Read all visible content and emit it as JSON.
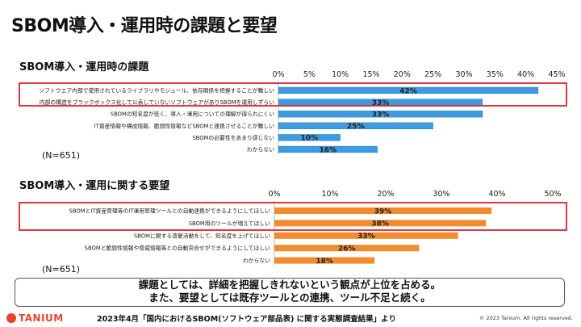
{
  "page": {
    "title": "SBOM導入・運用時の課題と要望",
    "summary_line1": "課題としては、詳細を把握しきれないという観点が上位を占める。",
    "summary_line2": "また、要望としては既存ツールとの連携、ツール不足と続く。",
    "logo": "TANIUM",
    "source": "2023年4月「国内におけるSBOM(ソフトウェア部品表) に関する実態調査結果」より",
    "copyright": "© 2023 Tanium. All rights reserved."
  },
  "chart_data": [
    {
      "type": "bar",
      "orientation": "horizontal",
      "title": "SBOM導入・運用時の課題",
      "n_label": "(N=651)",
      "color": "#3d9be0",
      "highlight_color": "#e0202c",
      "xlim": [
        0,
        45
      ],
      "ticks": [
        "0%",
        "5%",
        "10%",
        "15%",
        "20%",
        "25%",
        "30%",
        "35%",
        "40%",
        "45%"
      ],
      "tick_values": [
        0,
        5,
        10,
        15,
        20,
        25,
        30,
        35,
        40,
        45
      ],
      "categories": [
        "ソフトウエア内部で使用されているライブラリやモジュール、依存関係を把握することが難しい",
        "内部の構造をブラックボックス化して公表していないソフトウェアがありSBOMを運用しずらい",
        "SBOMの知名度が低く、導入・運用についての理解が得られにくい",
        "IT資産情報や構成情報、脆弱性情報などSBOMと連携させることが難しい",
        "SBOMの必要性をあまり感じない",
        "わからない"
      ],
      "values": [
        42,
        33,
        33,
        25,
        10,
        16
      ],
      "labels": [
        "42%",
        "33%",
        "33%",
        "25%",
        "10%",
        "16%"
      ],
      "highlighted": [
        0,
        1
      ]
    },
    {
      "type": "bar",
      "orientation": "horizontal",
      "title": "SBOM導入・運用に関する要望",
      "n_label": "(N=651)",
      "color": "#f28a2e",
      "highlight_color": "#e0202c",
      "xlim": [
        0,
        50
      ],
      "ticks": [
        "0%",
        "10%",
        "20%",
        "30%",
        "40%",
        "50%"
      ],
      "tick_values": [
        0,
        10,
        20,
        30,
        40,
        50
      ],
      "categories": [
        "SBOMとIT資産管理等のIT運用管理ツールとの自動連携ができるようにしてほしい",
        "SBOM用のツールが増えてほしい",
        "SBOMに関する啓蒙活動をして、知名度を上げてほしい",
        "SBOMと脆弱性情報や脅威情報等との自動突合せができるようにしてほしい",
        "わからない"
      ],
      "values": [
        39,
        38,
        33,
        26,
        18
      ],
      "labels": [
        "39%",
        "38%",
        "33%",
        "26%",
        "18%"
      ],
      "highlighted": [
        0,
        1
      ]
    }
  ]
}
